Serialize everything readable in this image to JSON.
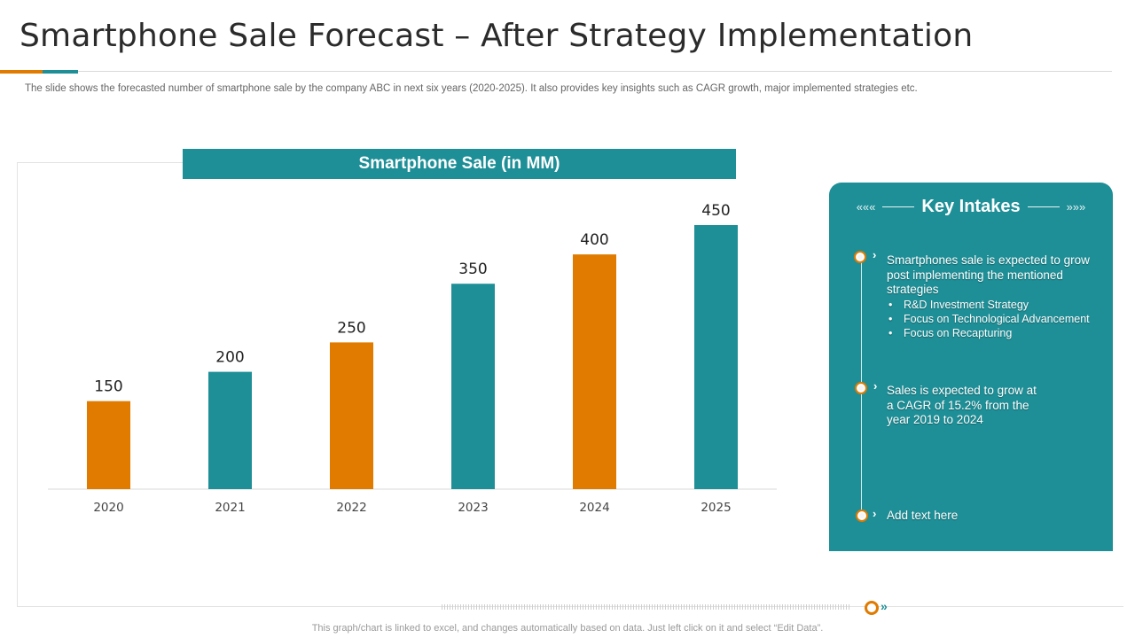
{
  "title": "Smartphone Sale Forecast – After Strategy Implementation",
  "subtitle": "The slide shows the forecasted number of smartphone sale by the company ABC in next six years (2020-2025).  It also provides  key insights such as CAGR growth, major implemented strategies etc.",
  "colors": {
    "teal": "#1e8f97",
    "orange": "#e07b00"
  },
  "chart_data": {
    "type": "bar",
    "title": "Smartphone Sale (in MM)",
    "categories": [
      "2020",
      "2021",
      "2022",
      "2023",
      "2024",
      "2025"
    ],
    "values": [
      150,
      200,
      250,
      350,
      400,
      450
    ],
    "bar_colors": [
      "#e07b00",
      "#1e8f97",
      "#e07b00",
      "#1e8f97",
      "#e07b00",
      "#1e8f97"
    ],
    "data_labels": [
      "150",
      "200",
      "250",
      "350",
      "400",
      "450"
    ],
    "xlabel": "",
    "ylabel": "",
    "ylim": [
      0,
      450
    ],
    "grid": false,
    "legend": "none"
  },
  "panel": {
    "deco_left": "«««",
    "deco_right": "»»»",
    "title": "Key Intakes",
    "items": [
      {
        "text": "Smartphones sale is expected to grow post implementing the mentioned strategies",
        "bullets": [
          "R&D Investment Strategy",
          "Focus on Technological Advancement",
          "Focus on Recapturing"
        ]
      },
      {
        "text": "Sales is expected to grow at a CAGR of 15.2% from the year 2019 to 2024"
      },
      {
        "text": "Add text here"
      }
    ],
    "chevron": "›"
  },
  "footer": "This graph/chart is linked to excel, and changes automatically based on data. Just left click on it and select “Edit Data”."
}
